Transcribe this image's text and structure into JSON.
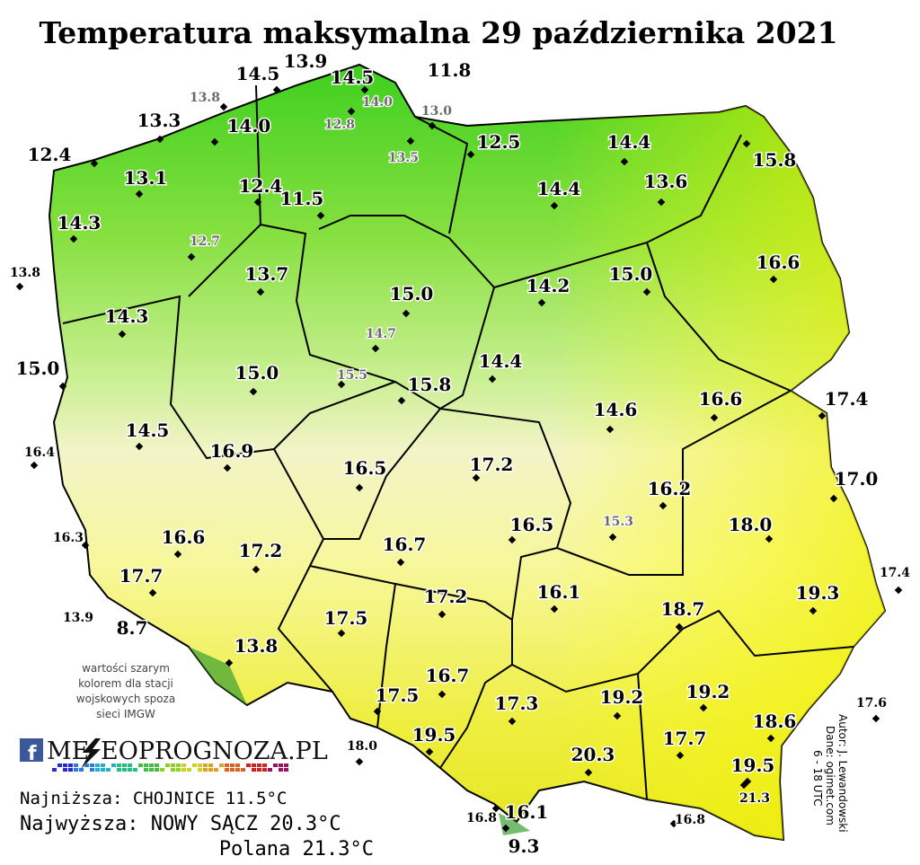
{
  "title": "Temperatura maksymalna 29 października 2021",
  "stations": [
    "14.5",
    "13.9",
    "14.5",
    "11.8",
    "13.8",
    "14.0",
    "12.8",
    "13.0",
    "13.3",
    "14.0",
    "13.5",
    "12.5",
    "14.4",
    "15.8",
    "12.4",
    "13.1",
    "12.4",
    "11.5",
    "14.4",
    "13.6",
    "14.3",
    "12.7",
    "16.6",
    "13.8",
    "13.7",
    "15.0",
    "14.2",
    "15.0",
    "14.3",
    "14.7",
    "15.0",
    "15.5",
    "15.0",
    "15.8",
    "14.4",
    "16.6",
    "17.4",
    "14.6",
    "14.5",
    "16.4",
    "16.9",
    "16.5",
    "17.2",
    "17.0",
    "16.2",
    "16.3",
    "16.6",
    "17.2",
    "16.7",
    "16.5",
    "15.3",
    "18.0",
    "17.7",
    "16.1",
    "17.4",
    "19.3",
    "13.9",
    "8.7",
    "17.2",
    "17.5",
    "18.7",
    "13.8",
    "16.7",
    "17.5",
    "17.3",
    "19.2",
    "19.2",
    "17.6",
    "18.6",
    "19.5",
    "17.7",
    "18.0",
    "20.3",
    "19.5",
    "21.3",
    "16.8",
    "16.1",
    "9.3",
    "16.8"
  ],
  "note": [
    "wartości szarym",
    "kolorem dla stacji",
    "wojskowych spoza",
    "sieci IMGW"
  ],
  "logo": {
    "left": "ME",
    "right": "EOPROGNOZA.PL"
  },
  "summary": {
    "lowest": "Najniższa: CHOJNICE 11.5°C",
    "highest": "Najwyższa: NOWY SĄCZ 20.3°C",
    "polana": "Polana 21.3°C"
  },
  "credits": [
    "Autor: J. Lewandowski",
    "Dane: ogimet.com",
    "6 - 18 UTC"
  ]
}
